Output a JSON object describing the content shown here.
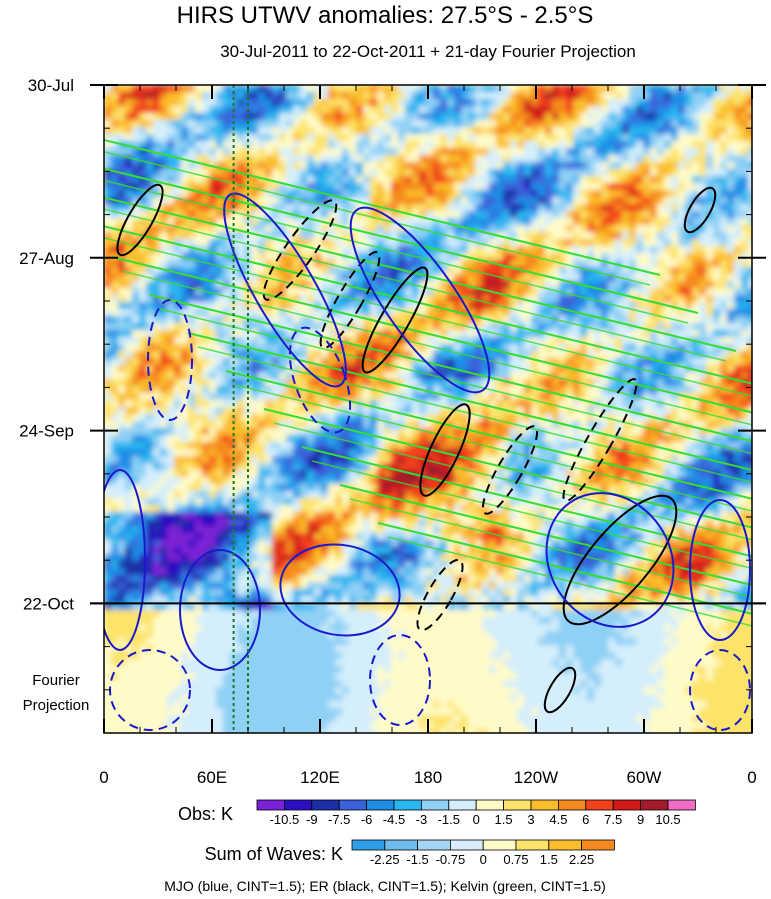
{
  "chart_data": {
    "type": "heatmap",
    "title": "HIRS UTWV anomalies: 27.5°S - 2.5°S",
    "subtitle": "30-Jul-2011 to 22-Oct-2011 + 21-day Fourier Projection",
    "x_tick_labels": [
      "0",
      "60E",
      "120E",
      "180",
      "120W",
      "60W",
      "0"
    ],
    "x_ticks_deg": [
      0,
      60,
      120,
      180,
      240,
      300,
      360
    ],
    "y_tick_labels": [
      "30-Jul",
      "27-Aug",
      "24-Sep",
      "22-Oct"
    ],
    "y_ticks_day": [
      0,
      28,
      56,
      84
    ],
    "y_range_days": [
      0,
      105
    ],
    "x_range_deg": [
      0,
      360
    ],
    "projection_label_line1": "Fourier",
    "projection_label_line2": "Projection",
    "projection_start_day": 84,
    "dashed_longitudes_deg": [
      72,
      80
    ],
    "obs_legend": {
      "title": "Obs: K",
      "levels": [
        "-10.5",
        "-9",
        "-7.5",
        "-6",
        "-4.5",
        "-3",
        "-1.5",
        "0",
        "1.5",
        "3",
        "4.5",
        "6",
        "7.5",
        "9",
        "10.5"
      ],
      "colors": [
        "#7b22d6",
        "#2a10c0",
        "#1b2fa8",
        "#3a62d9",
        "#1f8de6",
        "#2ab6f0",
        "#8fd0f5",
        "#d4eefc",
        "#fffbc8",
        "#fde36a",
        "#fbbd2c",
        "#f68a1f",
        "#f2411b",
        "#d21a1a",
        "#a41b2a",
        "#f06cc6"
      ]
    },
    "waves_legend": {
      "title": "Sum of Waves: K",
      "levels": [
        "-2.25",
        "-1.5",
        "-0.75",
        "0",
        "0.75",
        "1.5",
        "2.25"
      ],
      "colors": [
        "#2e9fe6",
        "#6fbcee",
        "#a6d6f5",
        "#d8edfb",
        "#fffbc8",
        "#fde36a",
        "#fbbd2c",
        "#f68a1f"
      ]
    },
    "footnote": "MJO (blue, CINT=1.5); ER (black, CINT=1.5); Kelvin (green, CINT=1.5)",
    "contour_series": [
      {
        "name": "MJO",
        "color": "#1a1acc",
        "cint": 1.5
      },
      {
        "name": "ER",
        "color": "#000000",
        "cint": 1.5
      },
      {
        "name": "Kelvin",
        "color": "#33dd33",
        "cint": 1.5
      }
    ]
  }
}
